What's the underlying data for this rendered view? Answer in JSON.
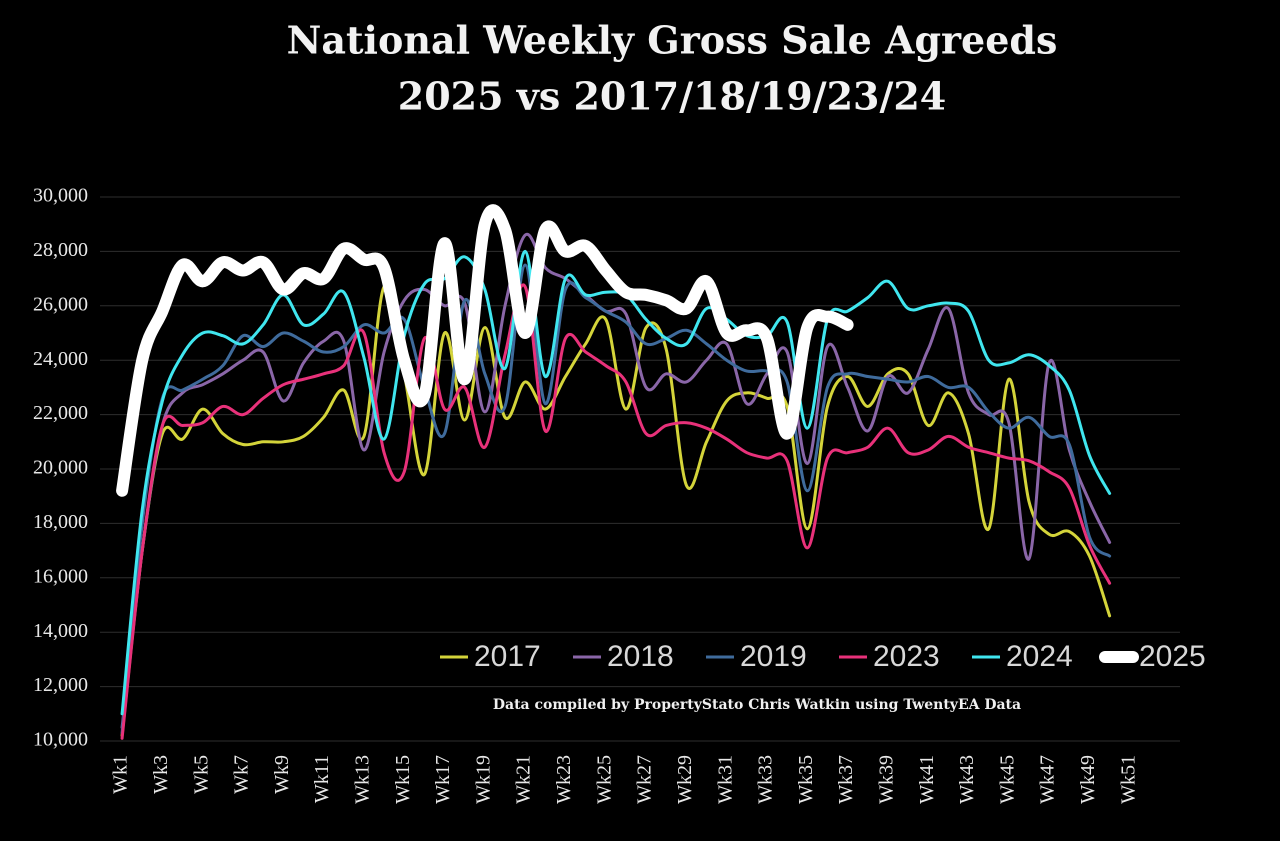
{
  "chart_data": {
    "type": "line",
    "title": "National Weekly Gross Sale Agreeds",
    "subtitle": "2025 vs 2017/18/19/23/24",
    "note": "Data compiled by PropertyStato Chris Watkin using TwentyEA Data",
    "categories": [
      "Wk1",
      null,
      "Wk3",
      null,
      "Wk5",
      null,
      "Wk7",
      null,
      "Wk9",
      null,
      "Wk11",
      null,
      "Wk13",
      null,
      "Wk15",
      null,
      "Wk17",
      null,
      "Wk19",
      null,
      "Wk21",
      null,
      "Wk23",
      null,
      "Wk25",
      null,
      "Wk27",
      null,
      "Wk29",
      null,
      "Wk31",
      null,
      "Wk33",
      null,
      "Wk35",
      null,
      "Wk37",
      null,
      "Wk39",
      null,
      "Wk41",
      null,
      "Wk43",
      null,
      "Wk45",
      null,
      "Wk47",
      null,
      "Wk49",
      null,
      "Wk51",
      null
    ],
    "ylim": [
      10000,
      30000
    ],
    "yticks": [
      {
        "value": 10000,
        "label": "10,000"
      },
      {
        "value": 12000,
        "label": "12,000"
      },
      {
        "value": 14000,
        "label": "14,000"
      },
      {
        "value": 16000,
        "label": "16,000"
      },
      {
        "value": 18000,
        "label": "18,000"
      },
      {
        "value": 20000,
        "label": "20,000"
      },
      {
        "value": 22000,
        "label": "22,000"
      },
      {
        "value": 24000,
        "label": "24,000"
      },
      {
        "value": 26000,
        "label": "26,000"
      },
      {
        "value": 28000,
        "label": "28,000"
      },
      {
        "value": 30000,
        "label": "30,000"
      }
    ],
    "grid": true,
    "legend": "bottom-right",
    "series": [
      {
        "name": "2017",
        "color": "#d4d43a",
        "values": [
          10200,
          17000,
          21300,
          21100,
          22200,
          21300,
          20900,
          21000,
          21000,
          21200,
          21900,
          22900,
          21200,
          26700,
          23500,
          19800,
          25000,
          21800,
          25200,
          21900,
          23200,
          22200,
          23400,
          24600,
          25500,
          22200,
          25200,
          24400,
          19400,
          21000,
          22500,
          22800,
          22600,
          22300,
          17800,
          22300,
          23400,
          22300,
          23500,
          23500,
          21600,
          22800,
          21300,
          17800,
          23300,
          18800,
          17600,
          17700,
          16800,
          14600,
          null,
          null
        ]
      },
      {
        "name": "2018",
        "color": "#8a66a8",
        "values": [
          10500,
          17000,
          21600,
          22800,
          23100,
          23500,
          24000,
          24300,
          22500,
          23900,
          24700,
          24700,
          20700,
          24300,
          26200,
          26600,
          26000,
          26100,
          22100,
          26000,
          28600,
          27400,
          27000,
          26400,
          25800,
          25700,
          23000,
          23500,
          23200,
          24000,
          24600,
          22400,
          23500,
          24300,
          20200,
          24500,
          23000,
          21400,
          23400,
          22800,
          24400,
          25900,
          22800,
          22000,
          21700,
          16700,
          23900,
          20700,
          18800,
          17300,
          null,
          null
        ]
      },
      {
        "name": "2019",
        "color": "#3f6b9c",
        "values": [
          10300,
          18000,
          22600,
          22900,
          23300,
          23800,
          24900,
          24500,
          25000,
          24700,
          24300,
          24500,
          25300,
          25000,
          25500,
          23000,
          21300,
          26200,
          23500,
          22300,
          27500,
          22400,
          26600,
          26300,
          25800,
          25400,
          24600,
          24800,
          25100,
          24600,
          24000,
          23600,
          23600,
          23200,
          19200,
          23000,
          23500,
          23400,
          23300,
          23200,
          23400,
          23000,
          23000,
          22100,
          21500,
          21900,
          21200,
          20900,
          17500,
          16800,
          null,
          null
        ]
      },
      {
        "name": "2023",
        "color": "#e8317a",
        "values": [
          10100,
          17000,
          21600,
          21600,
          21700,
          22300,
          22000,
          22600,
          23100,
          23300,
          23500,
          23800,
          25000,
          20600,
          19900,
          24800,
          22200,
          23000,
          20800,
          24200,
          26700,
          21400,
          24800,
          24300,
          23800,
          23200,
          21300,
          21600,
          21700,
          21500,
          21100,
          20600,
          20400,
          20300,
          17100,
          20400,
          20600,
          20800,
          21500,
          20600,
          20700,
          21200,
          20800,
          20600,
          20400,
          20300,
          19900,
          19300,
          17200,
          15800,
          null,
          null
        ]
      },
      {
        "name": "2024",
        "color": "#40e6ef",
        "values": [
          11000,
          18500,
          22500,
          24200,
          25000,
          24900,
          24600,
          25300,
          26400,
          25300,
          25700,
          26500,
          24100,
          21100,
          24900,
          26800,
          27000,
          27800,
          26600,
          23700,
          28000,
          23400,
          27000,
          26400,
          26500,
          26400,
          25500,
          24800,
          24600,
          25900,
          25500,
          24900,
          24900,
          25400,
          21500,
          25500,
          25800,
          26300,
          26900,
          25900,
          26000,
          26100,
          25800,
          24000,
          23900,
          24200,
          23800,
          22900,
          20500,
          19100,
          null,
          null
        ]
      },
      {
        "name": "2025",
        "color": "#ffffff",
        "values": [
          19200,
          24000,
          25800,
          27500,
          26900,
          27600,
          27300,
          27600,
          26600,
          27200,
          27000,
          28100,
          27700,
          27400,
          24000,
          22700,
          28300,
          23300,
          29000,
          28800,
          25000,
          28800,
          28000,
          28200,
          27300,
          26500,
          26400,
          26200,
          25900,
          26900,
          25000,
          25100,
          24800,
          21300,
          25200,
          25600,
          25300,
          null,
          null,
          null,
          null,
          null,
          null,
          null,
          null,
          null,
          null,
          null,
          null,
          null,
          null,
          null
        ]
      }
    ]
  }
}
